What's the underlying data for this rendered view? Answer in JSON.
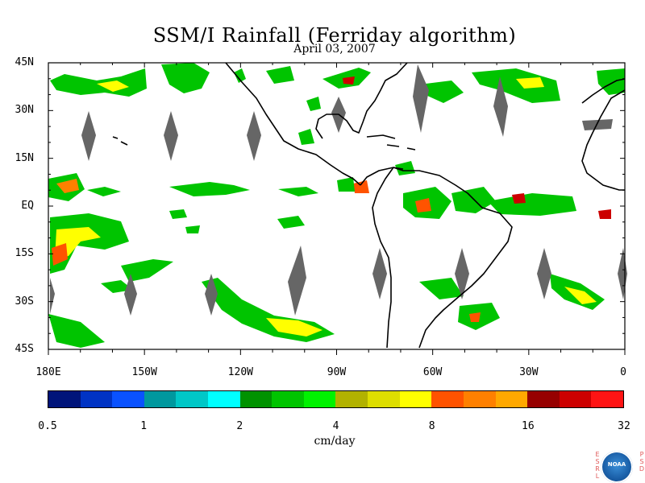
{
  "title": "SSM/I Rainfall (Ferriday algorithm)",
  "date": "April 03, 2007",
  "map": {
    "lat_labels": [
      "45N",
      "30N",
      "15N",
      "EQ",
      "15S",
      "30S",
      "45S"
    ],
    "lat_values": [
      45,
      30,
      15,
      0,
      -15,
      -30,
      -45
    ],
    "lon_labels": [
      "180E",
      "150W",
      "120W",
      "90W",
      "60W",
      "30W",
      "0"
    ],
    "lon_values": [
      -180,
      -150,
      -120,
      -90,
      -60,
      -30,
      0
    ],
    "lon_range": [
      -180,
      0
    ],
    "lat_range": [
      -45,
      45
    ],
    "no_data_color": "#666666",
    "coast_color": "#000000"
  },
  "colorbar": {
    "units": "cm/day",
    "labels": [
      "0.5",
      "1",
      "2",
      "4",
      "8",
      "16",
      "32"
    ],
    "colors": [
      "#00147a",
      "#0033c4",
      "#0a52ff",
      "#00989e",
      "#00c7c7",
      "#00ffff",
      "#009200",
      "#00c400",
      "#00f200",
      "#b2b200",
      "#dede00",
      "#ffff00",
      "#ff5300",
      "#ff8000",
      "#ffa800",
      "#960000",
      "#cc0000",
      "#ff1414"
    ]
  },
  "logo": {
    "left_letters": "ESRL",
    "right_letters": "PSD",
    "disk_text": "NOAA"
  }
}
